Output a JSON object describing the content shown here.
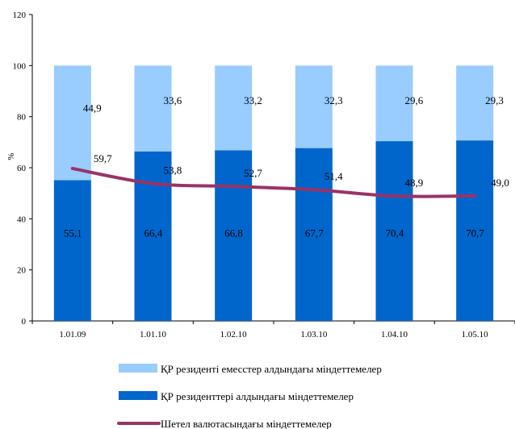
{
  "chart_data": {
    "type": "bar",
    "stacked": true,
    "categories": [
      "1.01.09",
      "1.01.10",
      "1.02.10",
      "1.03.10",
      "1.04.10",
      "1.05.10"
    ],
    "series": [
      {
        "name": "ҚР резиденттері алдындағы міндеттемелер",
        "kind": "bar",
        "color": "#0066CC",
        "values": [
          55.1,
          66.4,
          66.8,
          67.7,
          70.4,
          70.7
        ],
        "labels": [
          "55,1",
          "66,4",
          "66,8",
          "67,7",
          "70,4",
          "70,7"
        ]
      },
      {
        "name": "ҚР резиденті емесстер алдындағы міндеттемелер",
        "kind": "bar",
        "color": "#99CCFF",
        "values": [
          44.9,
          33.6,
          33.2,
          32.3,
          29.6,
          29.3
        ],
        "labels": [
          "44,9",
          "33,6",
          "33,2",
          "32,3",
          "29,6",
          "29,3"
        ]
      },
      {
        "name": "Шетел валютасындағы міндеттемелер",
        "kind": "line",
        "color": "#993366",
        "values": [
          59.7,
          53.8,
          52.7,
          51.4,
          48.9,
          49.0
        ],
        "labels": [
          "59,7",
          "53,8",
          "52,7",
          "51,4",
          "48,9",
          "49,0"
        ]
      }
    ],
    "ylabel": "%",
    "xlabel": "",
    "ylim": [
      0,
      120
    ],
    "yticks": [
      "0",
      "20",
      "40",
      "60",
      "80",
      "100",
      "120"
    ],
    "grid": false,
    "legend_position": "bottom"
  }
}
